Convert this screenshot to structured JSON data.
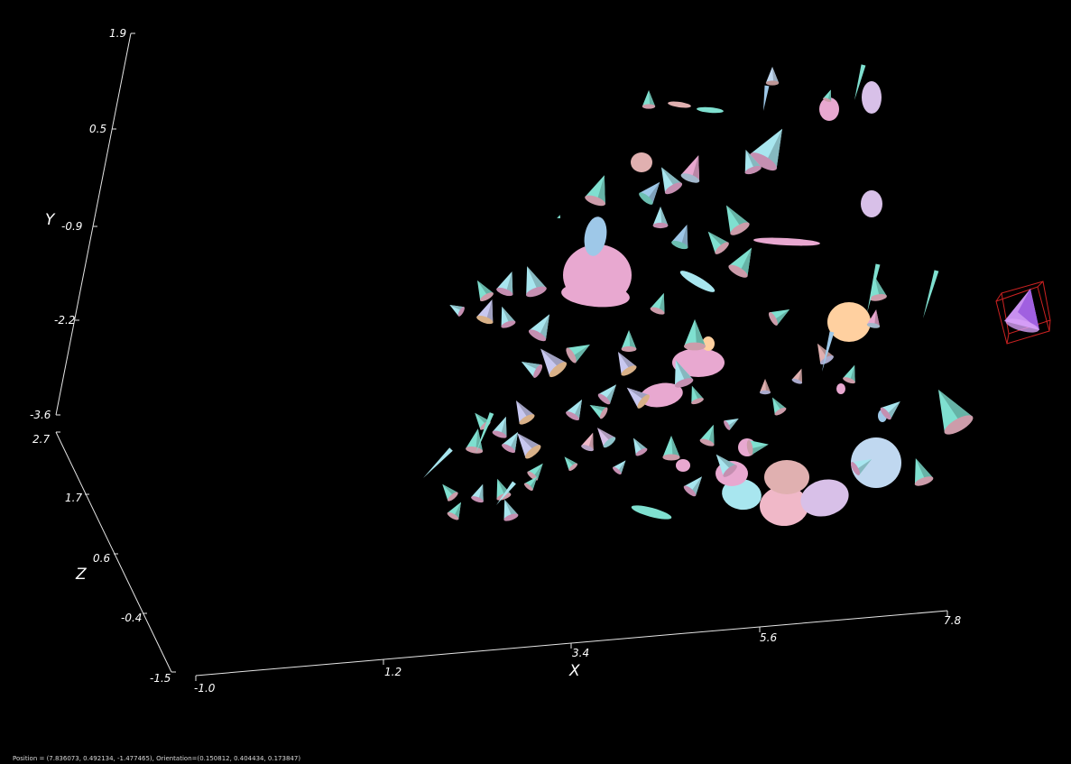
{
  "axes": {
    "y": {
      "title": "Y",
      "ticks": [
        "1.9",
        "0.5",
        "-0.9",
        "-2.2",
        "-3.6"
      ]
    },
    "z": {
      "title": "Z",
      "ticks": [
        "2.7",
        "1.7",
        "0.6",
        "-0.4",
        "-1.5"
      ]
    },
    "x": {
      "title": "X",
      "ticks": [
        "-1.0",
        "1.2",
        "3.4",
        "5.6",
        "7.8"
      ]
    }
  },
  "status": {
    "text": "Position = (7.836073, 0.492134, -1.477465), Orientation=(0.150812, 0.404434, 0.173847)"
  },
  "colors": {
    "background": "#000000",
    "axis": "#e6e6e6",
    "selection_box": "#cc2222",
    "glyph_palette": [
      "#a8e6ef",
      "#7fe0d0",
      "#c8c8f0",
      "#e8a8d0",
      "#f0b8c8",
      "#ffd0a0",
      "#c0d8f0",
      "#d8c0e8",
      "#9ec8e8",
      "#e0b0b0"
    ]
  },
  "scene": {
    "glyph_type": "cone",
    "selected_glyph_icon": "selected-cone-icon"
  }
}
